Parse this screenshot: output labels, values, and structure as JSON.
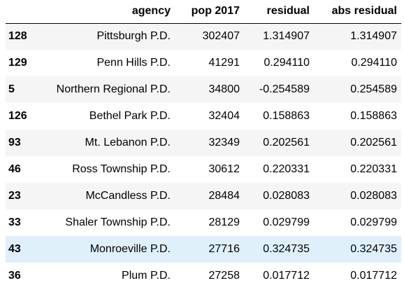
{
  "table": {
    "index_header": "",
    "columns": [
      "agency",
      "pop 2017",
      "residual",
      "abs residual"
    ],
    "hovered_row": 8,
    "rows": [
      {
        "index": "128",
        "agency": "Pittsburgh P.D.",
        "pop": "302407",
        "residual": "1.314907",
        "abs_residual": "1.314907"
      },
      {
        "index": "129",
        "agency": "Penn Hills P.D.",
        "pop": "41291",
        "residual": "0.294110",
        "abs_residual": "0.294110"
      },
      {
        "index": "5",
        "agency": "Northern Regional P.D.",
        "pop": "34800",
        "residual": "-0.254589",
        "abs_residual": "0.254589"
      },
      {
        "index": "126",
        "agency": "Bethel Park P.D.",
        "pop": "32404",
        "residual": "0.158863",
        "abs_residual": "0.158863"
      },
      {
        "index": "93",
        "agency": "Mt. Lebanon P.D.",
        "pop": "32349",
        "residual": "0.202561",
        "abs_residual": "0.202561"
      },
      {
        "index": "46",
        "agency": "Ross Township P.D.",
        "pop": "30612",
        "residual": "0.220331",
        "abs_residual": "0.220331"
      },
      {
        "index": "23",
        "agency": "McCandless P.D.",
        "pop": "28484",
        "residual": "0.028083",
        "abs_residual": "0.028083"
      },
      {
        "index": "33",
        "agency": "Shaler Township P.D.",
        "pop": "28129",
        "residual": "0.029799",
        "abs_residual": "0.029799"
      },
      {
        "index": "43",
        "agency": "Monroeville P.D.",
        "pop": "27716",
        "residual": "0.324735",
        "abs_residual": "0.324735"
      },
      {
        "index": "36",
        "agency": "Plum P.D.",
        "pop": "27258",
        "residual": "0.017712",
        "abs_residual": "0.017712"
      }
    ]
  }
}
